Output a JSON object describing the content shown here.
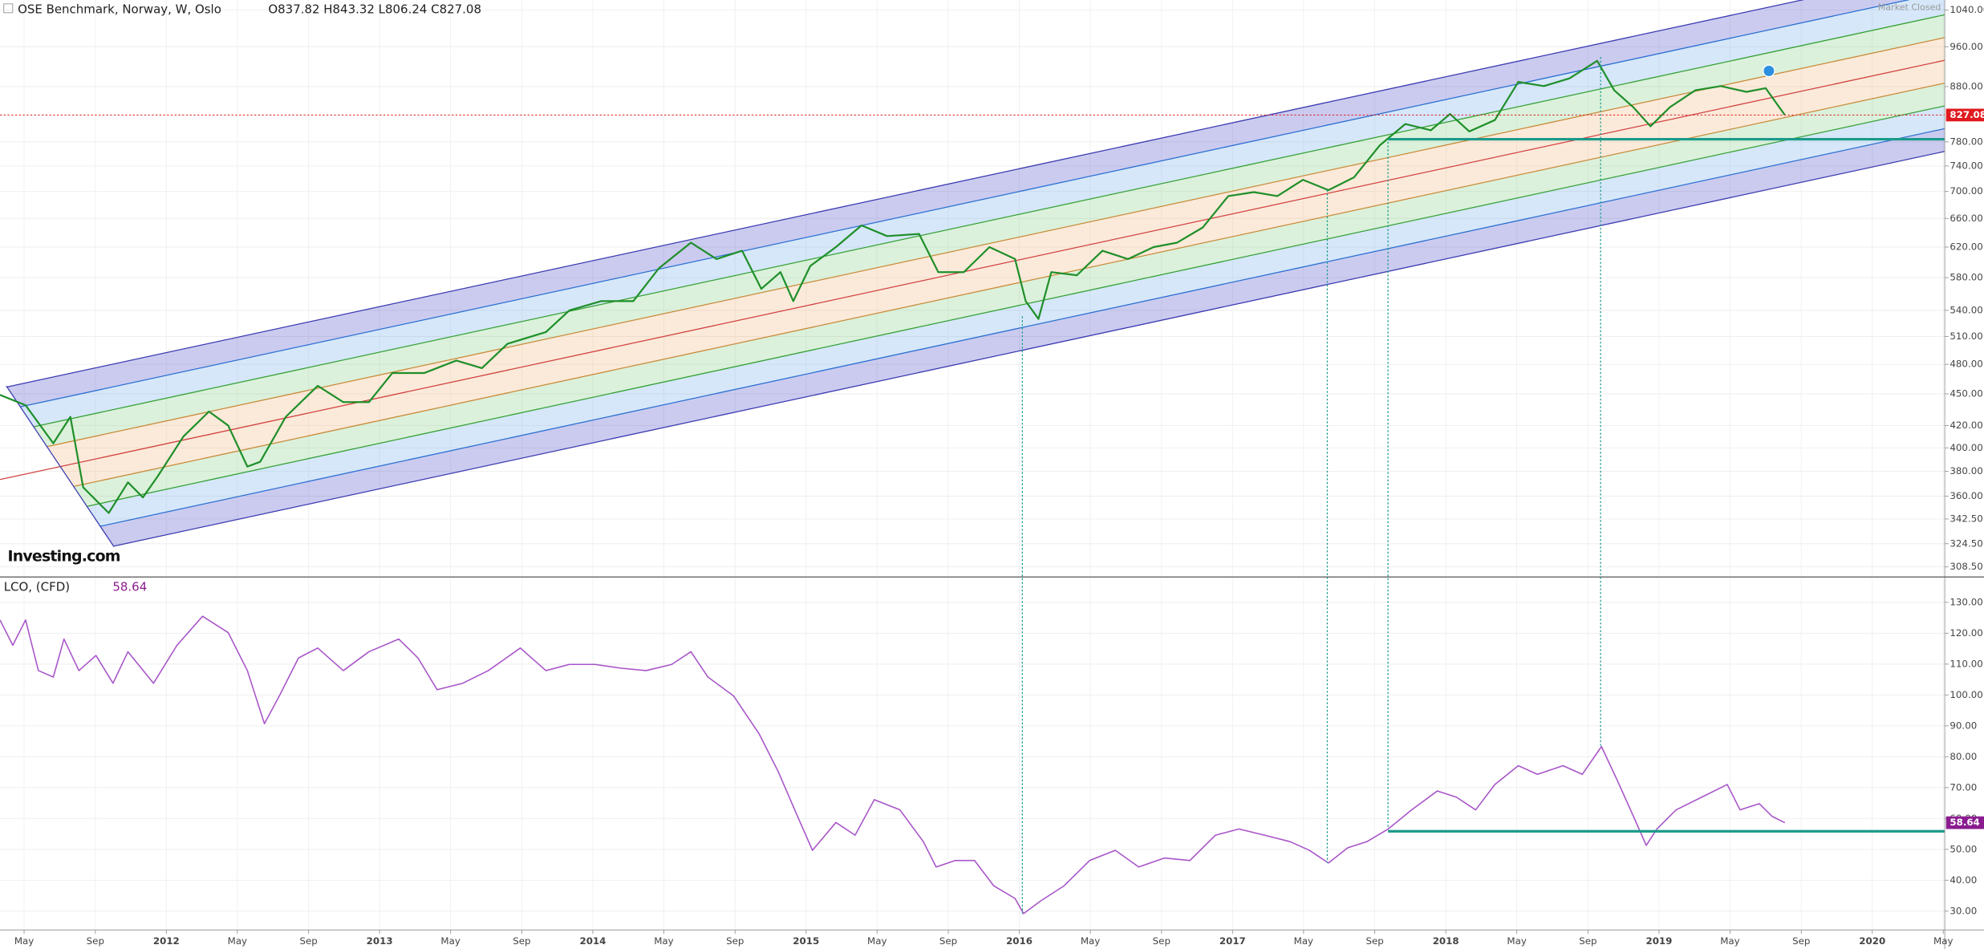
{
  "chart_data": [
    {
      "type": "line",
      "title": "OSE Benchmark, Norway, W, Oslo",
      "subtitle": "O837.82 H843.32 L806.24 C827.08",
      "annotation": "Market Closed",
      "watermark": "Investing.com",
      "color": "#1f8f2a",
      "log_scale": true,
      "grid": true,
      "last_value": 827.08,
      "last_value_color": "#e0191f",
      "xlim": [
        2011.22,
        2020.34
      ],
      "ylim": [
        302.6,
        1063
      ],
      "yticks": [
        {
          "value": 308.5,
          "label": "308.50"
        },
        {
          "value": 324.5,
          "label": "324.50"
        },
        {
          "value": 342.5,
          "label": "342.50"
        },
        {
          "value": 360,
          "label": "360.00"
        },
        {
          "value": 380,
          "label": "380.00"
        },
        {
          "value": 400,
          "label": "400.00"
        },
        {
          "value": 420,
          "label": "420.00"
        },
        {
          "value": 450,
          "label": "450.00"
        },
        {
          "value": 480,
          "label": "480.00"
        },
        {
          "value": 510,
          "label": "510.00"
        },
        {
          "value": 540,
          "label": "540.00"
        },
        {
          "value": 580,
          "label": "580.00"
        },
        {
          "value": 620,
          "label": "620.00"
        },
        {
          "value": 660,
          "label": "660.00"
        },
        {
          "value": 700,
          "label": "700.00"
        },
        {
          "value": 740,
          "label": "740.00"
        },
        {
          "value": 780,
          "label": "780.00"
        },
        {
          "value": 880,
          "label": "880.00"
        },
        {
          "value": 960,
          "label": "960.00"
        },
        {
          "value": 1040,
          "label": "1040.00"
        }
      ],
      "x": [
        2011.22,
        2011.34,
        2011.47,
        2011.55,
        2011.61,
        2011.73,
        2011.82,
        2011.89,
        2011.96,
        2012.08,
        2012.2,
        2012.29,
        2012.38,
        2012.44,
        2012.56,
        2012.71,
        2012.83,
        2012.95,
        2013.06,
        2013.21,
        2013.36,
        2013.48,
        2013.6,
        2013.78,
        2013.89,
        2014.04,
        2014.19,
        2014.31,
        2014.46,
        2014.58,
        2014.7,
        2014.79,
        2014.88,
        2014.94,
        2015.02,
        2015.14,
        2015.26,
        2015.38,
        2015.53,
        2015.62,
        2015.74,
        2015.86,
        2015.98,
        2016.03,
        2016.09,
        2016.15,
        2016.27,
        2016.39,
        2016.51,
        2016.63,
        2016.74,
        2016.86,
        2016.98,
        2017.1,
        2017.21,
        2017.33,
        2017.45,
        2017.57,
        2017.69,
        2017.81,
        2017.93,
        2018.02,
        2018.11,
        2018.23,
        2018.34,
        2018.46,
        2018.58,
        2018.71,
        2018.79,
        2018.88,
        2018.96,
        2019.05,
        2019.17,
        2019.29,
        2019.41,
        2019.5,
        2019.59
      ],
      "values": [
        449,
        439,
        404,
        428,
        367,
        347,
        371,
        359,
        376,
        410,
        433,
        420,
        384,
        388,
        428,
        458,
        442,
        442,
        471,
        471,
        484,
        476,
        502,
        515,
        540,
        551,
        551,
        592,
        626,
        604,
        615,
        566,
        587,
        551,
        595,
        620,
        650,
        635,
        638,
        587,
        587,
        620,
        604,
        551,
        530,
        587,
        583,
        615,
        604,
        620,
        626,
        647,
        693,
        699,
        693,
        718,
        702,
        722,
        774,
        811,
        800,
        829,
        798,
        818,
        889,
        881,
        896,
        931,
        873,
        841,
        807,
        841,
        873,
        881,
        870,
        877,
        827.08
      ]
    },
    {
      "type": "line",
      "title": "LCO, (CFD)",
      "color": "#a855c8",
      "grid": true,
      "last_value": 58.64,
      "last_value_color": "#8a1c8f",
      "xlim": [
        2011.22,
        2020.34
      ],
      "ylim": [
        23.9,
        137.8
      ],
      "yticks": [
        {
          "value": 30,
          "label": "30.00"
        },
        {
          "value": 40,
          "label": "40.00"
        },
        {
          "value": 50,
          "label": "50.00"
        },
        {
          "value": 60,
          "label": "60.00"
        },
        {
          "value": 70,
          "label": "70.00"
        },
        {
          "value": 80,
          "label": "80.00"
        },
        {
          "value": 90,
          "label": "90.00"
        },
        {
          "value": 100,
          "label": "100.00"
        },
        {
          "value": 110,
          "label": "110.00"
        },
        {
          "value": 120,
          "label": "120.00"
        },
        {
          "value": 130,
          "label": "130.00"
        }
      ],
      "xticks": [
        {
          "value": 2011.333,
          "label": "May"
        },
        {
          "value": 2011.667,
          "label": "Sep"
        },
        2012,
        {
          "value": 2012.333,
          "label": "May"
        },
        {
          "value": 2012.667,
          "label": "Sep"
        },
        2013,
        {
          "value": 2013.333,
          "label": "May"
        },
        {
          "value": 2013.667,
          "label": "Sep"
        },
        2014,
        {
          "value": 2014.333,
          "label": "May"
        },
        {
          "value": 2014.667,
          "label": "Sep"
        },
        2015,
        {
          "value": 2015.333,
          "label": "May"
        },
        {
          "value": 2015.667,
          "label": "Sep"
        },
        2016,
        {
          "value": 2016.333,
          "label": "May"
        },
        {
          "value": 2016.667,
          "label": "Sep"
        },
        2017,
        {
          "value": 2017.333,
          "label": "May"
        },
        {
          "value": 2017.667,
          "label": "Sep"
        },
        2018,
        {
          "value": 2018.333,
          "label": "May"
        },
        {
          "value": 2018.667,
          "label": "Sep"
        },
        2019,
        {
          "value": 2019.333,
          "label": "May"
        },
        {
          "value": 2019.667,
          "label": "Sep"
        },
        2020,
        {
          "value": 2020.333,
          "label": "May"
        }
      ],
      "x": [
        2011.22,
        2011.28,
        2011.34,
        2011.4,
        2011.47,
        2011.52,
        2011.59,
        2011.67,
        2011.75,
        2011.82,
        2011.94,
        2012.05,
        2012.17,
        2012.29,
        2012.38,
        2012.46,
        2012.53,
        2012.62,
        2012.71,
        2012.83,
        2012.95,
        2013.09,
        2013.18,
        2013.27,
        2013.39,
        2013.51,
        2013.66,
        2013.78,
        2013.89,
        2014.01,
        2014.13,
        2014.25,
        2014.37,
        2014.46,
        2014.54,
        2014.66,
        2014.78,
        2014.87,
        2014.96,
        2015.03,
        2015.14,
        2015.23,
        2015.32,
        2015.44,
        2015.55,
        2015.61,
        2015.7,
        2015.79,
        2015.88,
        2015.98,
        2016.02,
        2016.1,
        2016.21,
        2016.33,
        2016.45,
        2016.56,
        2016.68,
        2016.8,
        2016.92,
        2017.03,
        2017.15,
        2017.27,
        2017.36,
        2017.45,
        2017.54,
        2017.63,
        2017.73,
        2017.84,
        2017.96,
        2018.05,
        2018.14,
        2018.23,
        2018.34,
        2018.43,
        2018.55,
        2018.64,
        2018.73,
        2018.8,
        2018.88,
        2018.94,
        2018.99,
        2019.08,
        2019.2,
        2019.32,
        2019.38,
        2019.47,
        2019.53,
        2019.59
      ],
      "values": [
        124.3,
        116.1,
        124.3,
        107.9,
        105.8,
        118.1,
        107.9,
        112.8,
        103.8,
        114,
        103.8,
        116.1,
        125.5,
        120.2,
        107.9,
        90.7,
        99.7,
        112,
        115.2,
        107.9,
        114,
        118.1,
        112,
        101.7,
        103.8,
        107.9,
        115.2,
        107.9,
        109.9,
        109.9,
        108.7,
        107.9,
        109.9,
        114,
        105.8,
        99.7,
        87.4,
        75.1,
        60.7,
        49.7,
        58.7,
        54.6,
        66.1,
        62.8,
        52.5,
        44.3,
        46.4,
        46.4,
        38.2,
        34.1,
        29.2,
        33.3,
        38.2,
        46.4,
        49.7,
        44.3,
        47.2,
        46.4,
        54.6,
        56.6,
        54.6,
        52.5,
        49.7,
        45.6,
        50.5,
        52.5,
        56.6,
        62.8,
        68.9,
        66.9,
        62.8,
        71,
        77.1,
        74.3,
        77.1,
        74.3,
        83.3,
        73,
        60.7,
        51.3,
        56.6,
        62.8,
        66.9,
        71,
        62.8,
        64.8,
        60.7,
        58.64
      ]
    }
  ]
}
